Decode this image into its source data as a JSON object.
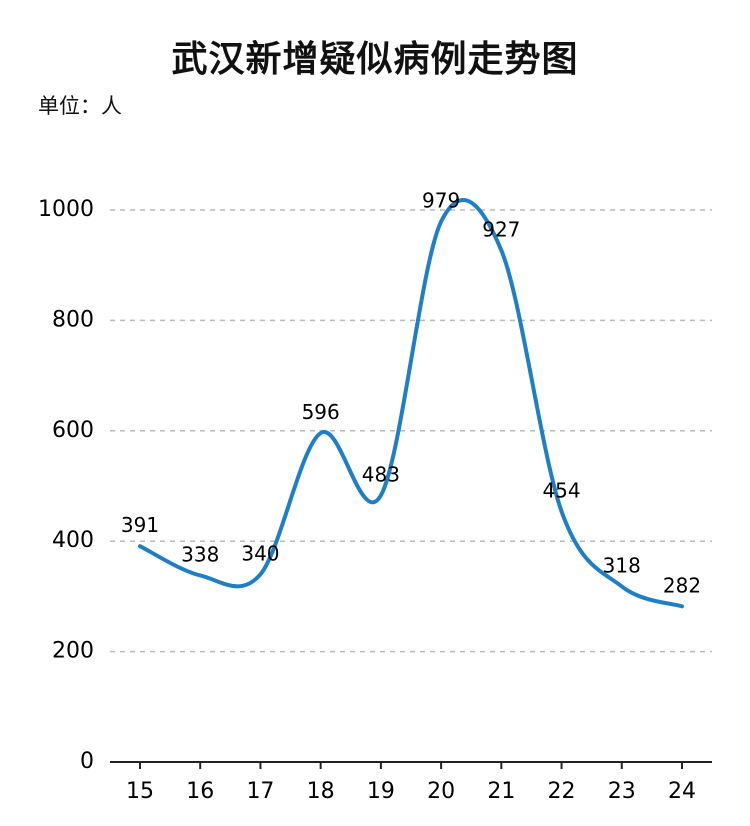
{
  "chart_data": {
    "type": "line",
    "title": "武汉新增疑似病例走势图",
    "unit_label": "单位：人",
    "categories": [
      "15",
      "16",
      "17",
      "18",
      "19",
      "20",
      "21",
      "22",
      "23",
      "24"
    ],
    "values": [
      391,
      338,
      340,
      596,
      483,
      979,
      927,
      454,
      318,
      282
    ],
    "ylim": [
      0,
      1000
    ],
    "yticks": [
      "0",
      "200",
      "400",
      "600",
      "800",
      "1000"
    ],
    "grid": true,
    "smooth": true,
    "line_color": "#1f7fc6"
  }
}
